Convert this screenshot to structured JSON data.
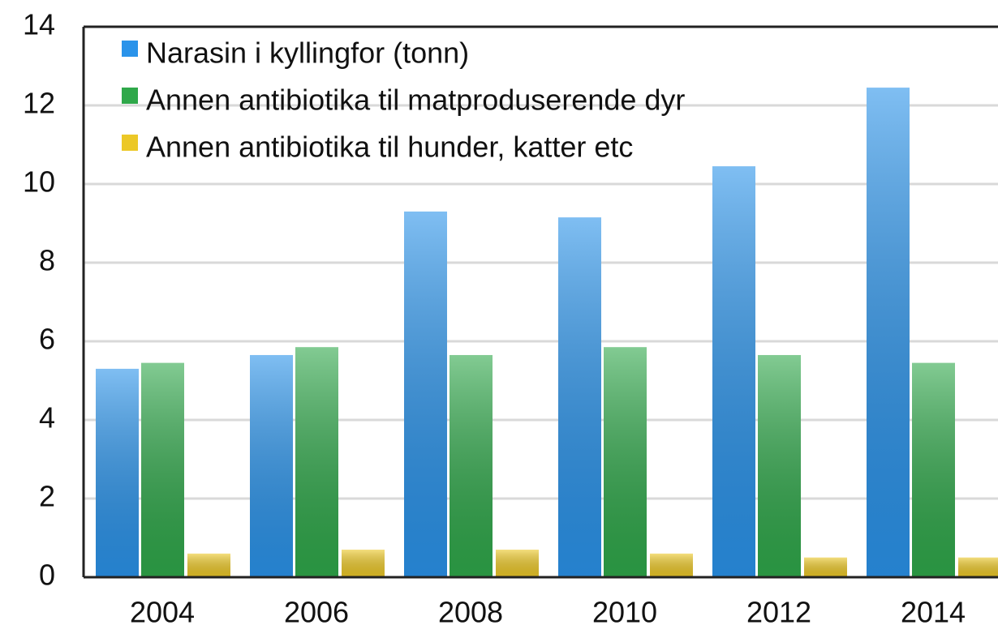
{
  "chart_data": {
    "type": "bar",
    "categories": [
      "2004",
      "2006",
      "2008",
      "2010",
      "2012",
      "2014"
    ],
    "series": [
      {
        "name": "Narasin i kyllingfor (tonn)",
        "color": "#2a93ea",
        "values": [
          5.3,
          5.65,
          9.3,
          9.15,
          10.45,
          12.45
        ]
      },
      {
        "name": "Annen antibiotika til matproduserende dyr",
        "color": "#2fa84a",
        "values": [
          5.45,
          5.85,
          5.65,
          5.85,
          5.65,
          5.45
        ]
      },
      {
        "name": "Annen antibiotika til hunder, katter etc",
        "color": "#ecc827",
        "values": [
          0.6,
          0.7,
          0.7,
          0.6,
          0.5,
          0.5
        ]
      }
    ],
    "ylim": [
      0,
      14
    ],
    "yticks": [
      0,
      2,
      4,
      6,
      8,
      10,
      12,
      14
    ],
    "grid": true,
    "legend": "top-left"
  }
}
